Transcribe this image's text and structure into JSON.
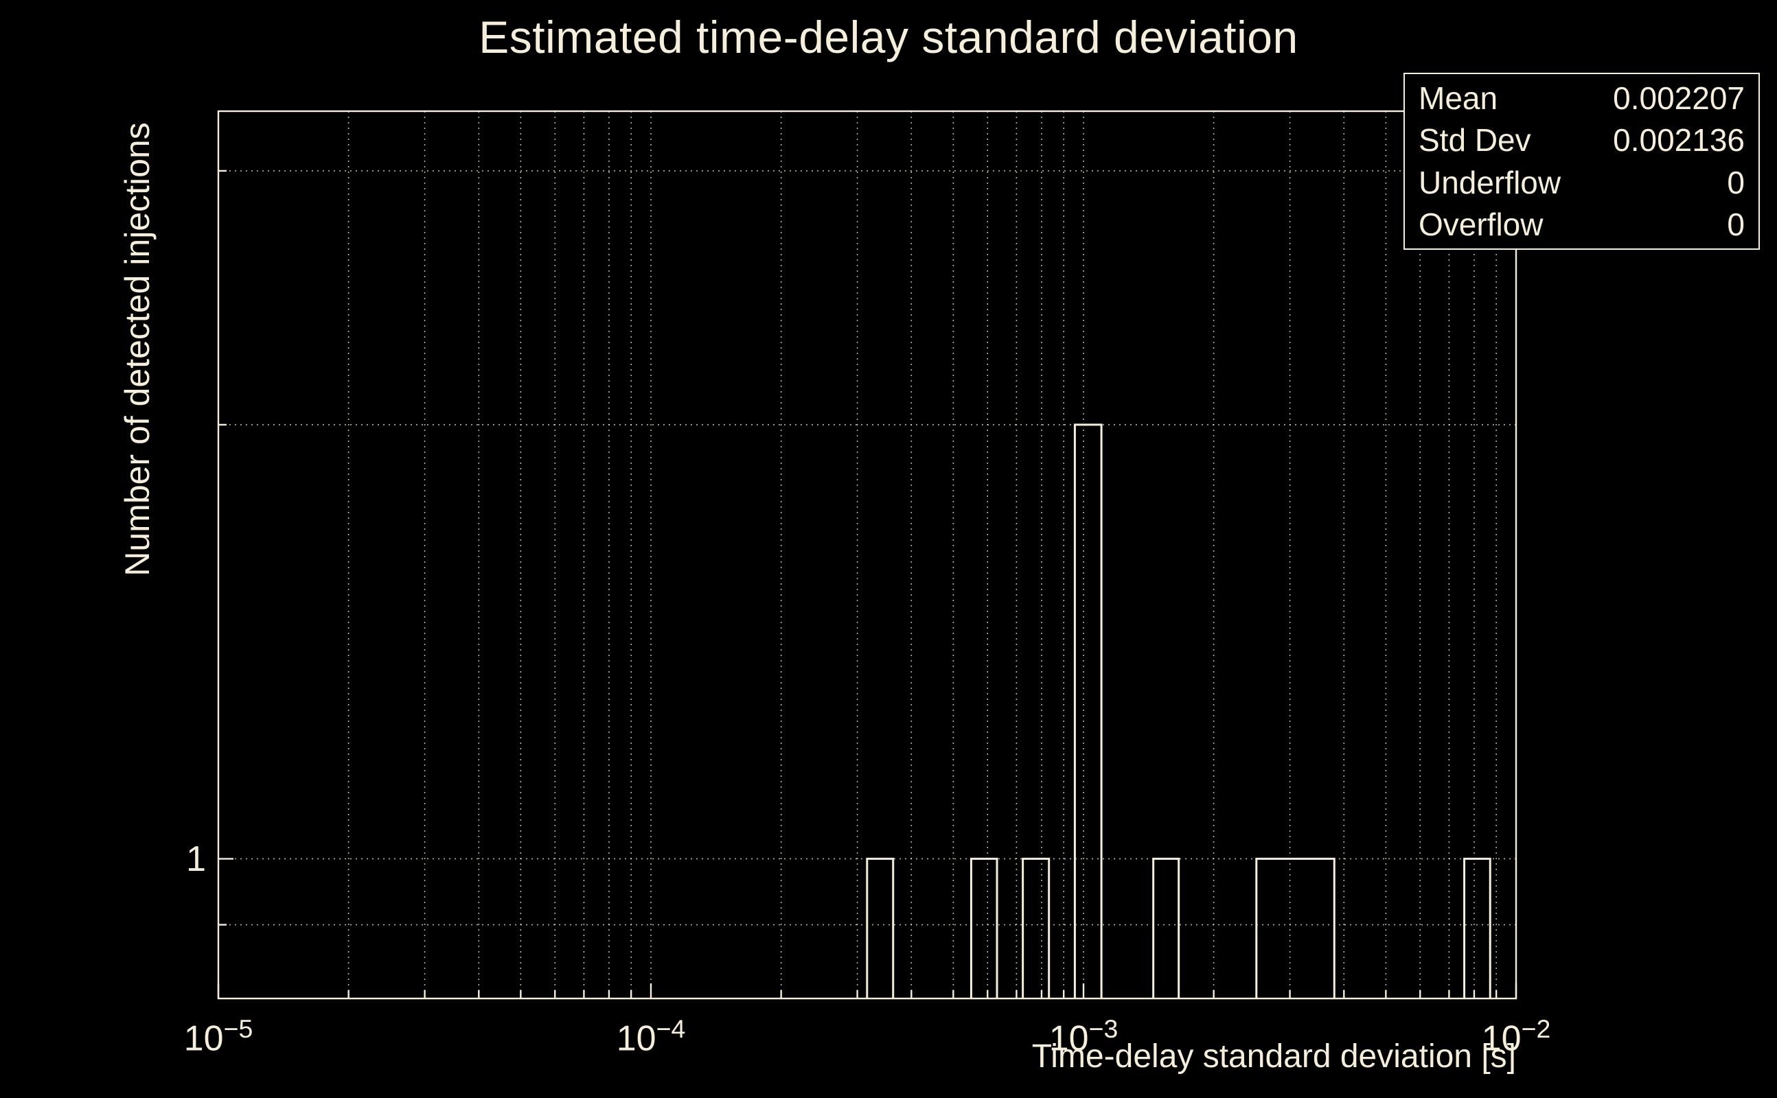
{
  "title": "Estimated time-delay standard deviation",
  "stats": {
    "rows": [
      {
        "label": "Mean",
        "value": "0.002207"
      },
      {
        "label": "Std Dev",
        "value": "0.002136"
      },
      {
        "label": "Underflow",
        "value": "0"
      },
      {
        "label": "Overflow",
        "value": "0"
      }
    ]
  },
  "chart_data": {
    "type": "bar",
    "subtype": "histogram-outline",
    "title": "Estimated time-delay standard deviation",
    "xlabel": "Time-delay standard deviation [s]",
    "ylabel": "Number of detected injections",
    "xscale": "log",
    "yscale": "log",
    "xlim": [
      1e-05,
      0.01
    ],
    "ylim": [
      0.8,
      3.3
    ],
    "grid": true,
    "x_major_ticks_exponents": [
      -5,
      -4,
      -3,
      -2
    ],
    "y_labeled_ticks": [
      1
    ],
    "y_gridlines": [
      0.9,
      1,
      2,
      3
    ],
    "bars": [
      {
        "xmin": 0.000316,
        "xmax": 0.000363,
        "count": 1
      },
      {
        "xmin": 0.00055,
        "xmax": 0.000631,
        "count": 1
      },
      {
        "xmin": 0.000724,
        "xmax": 0.000832,
        "count": 1
      },
      {
        "xmin": 0.000955,
        "xmax": 0.0011,
        "count": 2
      },
      {
        "xmin": 0.00145,
        "xmax": 0.00166,
        "count": 1
      },
      {
        "xmin": 0.00251,
        "xmax": 0.0038,
        "count": 1
      },
      {
        "xmin": 0.00759,
        "xmax": 0.00871,
        "count": 1
      }
    ],
    "colors": {
      "background": "#000000",
      "foreground": "#f5eeda",
      "grid": "#f5eeda"
    }
  }
}
